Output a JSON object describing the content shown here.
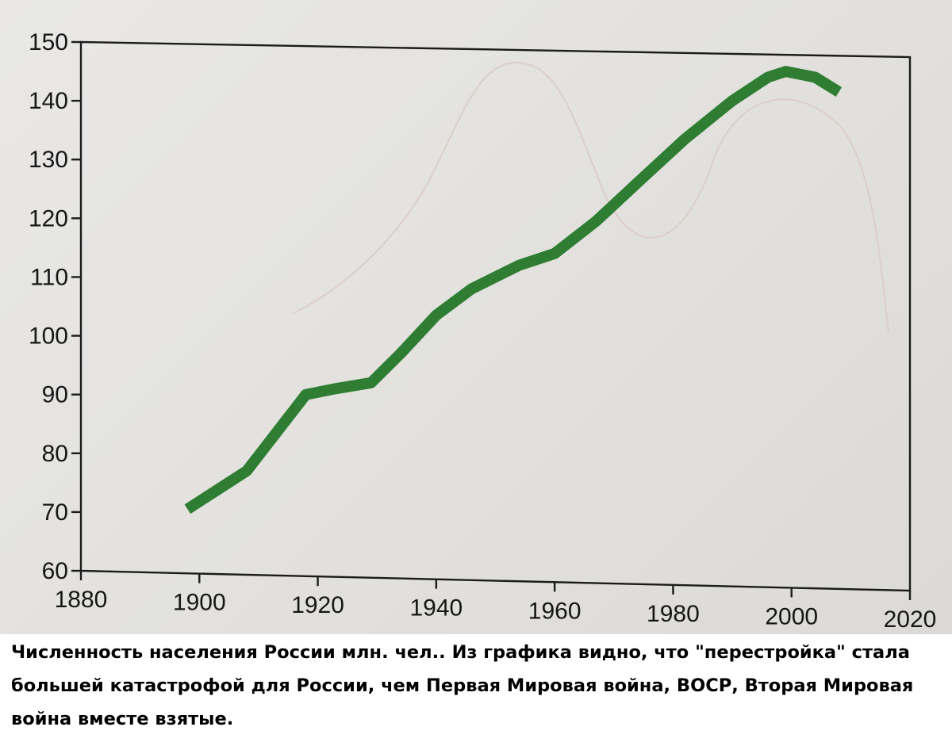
{
  "chart_data": {
    "type": "line",
    "title": "",
    "xlabel": "",
    "ylabel": "",
    "xlim": [
      1880,
      2020
    ],
    "ylim": [
      60,
      150
    ],
    "x_ticks": [
      "1880",
      "1900",
      "1920",
      "1940",
      "1960",
      "1980",
      "2000",
      "2020"
    ],
    "y_ticks": [
      "60",
      "70",
      "80",
      "90",
      "100",
      "110",
      "120",
      "130",
      "140",
      "150"
    ],
    "grid": false,
    "legend": "none",
    "series": [
      {
        "color": "#2e7d32",
        "x": [
          1898,
          1908,
          1918,
          1923,
          1929,
          1934,
          1940,
          1946,
          1954,
          1960,
          1967,
          1975,
          1982,
          1990,
          1996,
          1999,
          2004,
          2008
        ],
        "y": [
          70.5,
          77,
          90,
          91,
          92,
          97,
          103.5,
          108,
          112,
          114,
          119.5,
          127,
          133.5,
          140,
          144,
          145,
          144,
          141.5
        ]
      }
    ]
  },
  "caption": "Численность населения России млн. чел.. Из графика видно, что \"перестройка\" стала большей катастрофой для России, чем Первая Мировая война, ВОСР, Вторая Мировая война вместе взятые."
}
